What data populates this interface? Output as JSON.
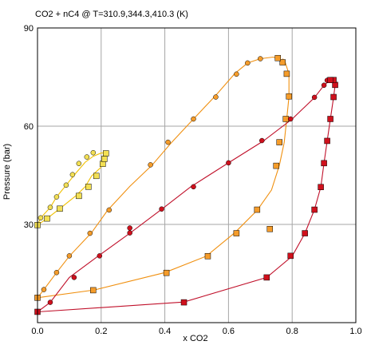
{
  "chart_data": {
    "type": "scatter",
    "title": "CO2 + nC4 @ T=310.9,344.3,410.3 (K)",
    "xlabel": "x CO2",
    "ylabel": "Pressure (bar)",
    "xlim": [
      0,
      1
    ],
    "ylim": [
      0,
      90
    ],
    "xticks": [
      "0.0",
      "0.2",
      "0.4",
      "0.6",
      "0.8",
      "1.0"
    ],
    "yticks": [
      "30",
      "60",
      "90"
    ],
    "grid": true,
    "legend": "none",
    "colors": {
      "low_T": "#f3e054",
      "low_T_line": "#f0c000",
      "mid_T": "#f59c2a",
      "mid_T_line": "#f09010",
      "high_T": "#d0101c",
      "high_T_line": "#c0102a",
      "grid": "#a6a6a6",
      "axis": "#000000"
    },
    "series": [
      {
        "temperature_index": 0,
        "color_key": "low_T",
        "curve": [
          [
            0.0,
            29.8
          ],
          [
            0.03,
            31.8
          ],
          [
            0.07,
            34.8
          ],
          [
            0.12,
            38.7
          ],
          [
            0.15,
            41.5
          ],
          [
            0.17,
            44.8
          ],
          [
            0.2,
            47.5
          ]
        ],
        "curve_upper": [
          [
            0.0,
            29.8
          ],
          [
            0.01,
            32.0
          ],
          [
            0.04,
            35.2
          ],
          [
            0.06,
            38.4
          ],
          [
            0.09,
            42.0
          ],
          [
            0.12,
            45.6
          ],
          [
            0.15,
            49.0
          ],
          [
            0.175,
            50.8
          ],
          [
            0.2,
            51.8
          ],
          [
            0.21,
            51.8
          ]
        ],
        "circles": [
          [
            0.01,
            32.0
          ],
          [
            0.04,
            35.2
          ],
          [
            0.06,
            38.4
          ],
          [
            0.09,
            42.0
          ],
          [
            0.11,
            45.2
          ],
          [
            0.13,
            48.6
          ],
          [
            0.155,
            50.6
          ],
          [
            0.175,
            51.9
          ]
        ],
        "squares": [
          [
            0.0,
            29.8
          ],
          [
            0.03,
            31.8
          ],
          [
            0.07,
            34.8
          ],
          [
            0.13,
            38.7
          ],
          [
            0.16,
            41.5
          ],
          [
            0.185,
            44.8
          ],
          [
            0.205,
            48.5
          ],
          [
            0.21,
            50.0
          ],
          [
            0.215,
            51.7
          ]
        ]
      },
      {
        "temperature_index": 1,
        "color_key": "mid_T",
        "curve_upper": [
          [
            0.0,
            7.6
          ],
          [
            0.02,
            10.1
          ],
          [
            0.06,
            15.3
          ],
          [
            0.1,
            20.3
          ],
          [
            0.17,
            27.5
          ],
          [
            0.22,
            34.3
          ],
          [
            0.29,
            41.6
          ],
          [
            0.36,
            48.1
          ],
          [
            0.42,
            54.9
          ],
          [
            0.49,
            62.2
          ],
          [
            0.56,
            69.4
          ],
          [
            0.62,
            76.1
          ],
          [
            0.66,
            79.3
          ],
          [
            0.7,
            80.6
          ],
          [
            0.74,
            81.1
          ],
          [
            0.76,
            80.6
          ],
          [
            0.775,
            79.8
          ]
        ],
        "curve_lower": [
          [
            0.0,
            7.6
          ],
          [
            0.18,
            10.0
          ],
          [
            0.4,
            15.3
          ],
          [
            0.53,
            20.3
          ],
          [
            0.62,
            27.5
          ],
          [
            0.69,
            34.3
          ],
          [
            0.735,
            40.5
          ],
          [
            0.76,
            48.1
          ],
          [
            0.775,
            55.0
          ],
          [
            0.783,
            62.2
          ],
          [
            0.79,
            69.0
          ],
          [
            0.79,
            75.9
          ],
          [
            0.778,
            79.6
          ],
          [
            0.77,
            80.6
          ]
        ],
        "circles": [
          [
            0.0,
            7.6
          ],
          [
            0.02,
            10.1
          ],
          [
            0.06,
            15.3
          ],
          [
            0.1,
            20.4
          ],
          [
            0.165,
            27.3
          ],
          [
            0.225,
            34.4
          ],
          [
            0.355,
            48.2
          ],
          [
            0.41,
            55.1
          ],
          [
            0.49,
            62.2
          ],
          [
            0.56,
            68.9
          ],
          [
            0.625,
            75.9
          ],
          [
            0.66,
            79.3
          ],
          [
            0.7,
            80.6
          ]
        ],
        "squares": [
          [
            0.0,
            7.6
          ],
          [
            0.175,
            9.9
          ],
          [
            0.405,
            15.2
          ],
          [
            0.535,
            20.3
          ],
          [
            0.625,
            27.3
          ],
          [
            0.69,
            34.5
          ],
          [
            0.73,
            28.6
          ],
          [
            0.75,
            47.9
          ],
          [
            0.76,
            55.1
          ],
          [
            0.78,
            62.2
          ],
          [
            0.79,
            69.1
          ],
          [
            0.783,
            76.0
          ],
          [
            0.77,
            79.5
          ],
          [
            0.755,
            80.8
          ]
        ]
      },
      {
        "temperature_index": 2,
        "color_key": "high_T",
        "curve_upper": [
          [
            0.0,
            3.3
          ],
          [
            0.04,
            6.2
          ],
          [
            0.1,
            13.8
          ],
          [
            0.19,
            20.3
          ],
          [
            0.29,
            27.3
          ],
          [
            0.39,
            34.6
          ],
          [
            0.48,
            41.4
          ],
          [
            0.6,
            48.8
          ],
          [
            0.71,
            55.5
          ],
          [
            0.8,
            62.2
          ],
          [
            0.87,
            68.7
          ],
          [
            0.9,
            72.5
          ]
        ],
        "curve_lower": [
          [
            0.0,
            3.3
          ],
          [
            0.46,
            6.3
          ],
          [
            0.72,
            13.8
          ],
          [
            0.8,
            20.3
          ],
          [
            0.84,
            27.3
          ],
          [
            0.87,
            34.5
          ],
          [
            0.89,
            41.4
          ],
          [
            0.9,
            48.7
          ],
          [
            0.91,
            55.5
          ],
          [
            0.92,
            62.2
          ],
          [
            0.93,
            68.8
          ],
          [
            0.935,
            72.6
          ],
          [
            0.92,
            74.1
          ],
          [
            0.9,
            72.5
          ]
        ],
        "circles": [
          [
            0.0,
            3.3
          ],
          [
            0.04,
            6.2
          ],
          [
            0.115,
            13.8
          ],
          [
            0.195,
            20.4
          ],
          [
            0.29,
            27.4
          ],
          [
            0.29,
            28.9
          ],
          [
            0.39,
            34.7
          ],
          [
            0.49,
            41.5
          ],
          [
            0.6,
            48.8
          ],
          [
            0.705,
            55.6
          ],
          [
            0.795,
            62.2
          ],
          [
            0.87,
            68.8
          ],
          [
            0.9,
            72.5
          ],
          [
            0.91,
            74.0
          ]
        ],
        "squares": [
          [
            0.0,
            3.3
          ],
          [
            0.46,
            6.2
          ],
          [
            0.72,
            13.8
          ],
          [
            0.795,
            20.4
          ],
          [
            0.84,
            27.3
          ],
          [
            0.87,
            34.5
          ],
          [
            0.89,
            41.4
          ],
          [
            0.9,
            48.7
          ],
          [
            0.91,
            55.5
          ],
          [
            0.92,
            62.2
          ],
          [
            0.93,
            68.9
          ],
          [
            0.935,
            72.6
          ],
          [
            0.93,
            74.1
          ],
          [
            0.92,
            74.1
          ]
        ]
      }
    ]
  }
}
